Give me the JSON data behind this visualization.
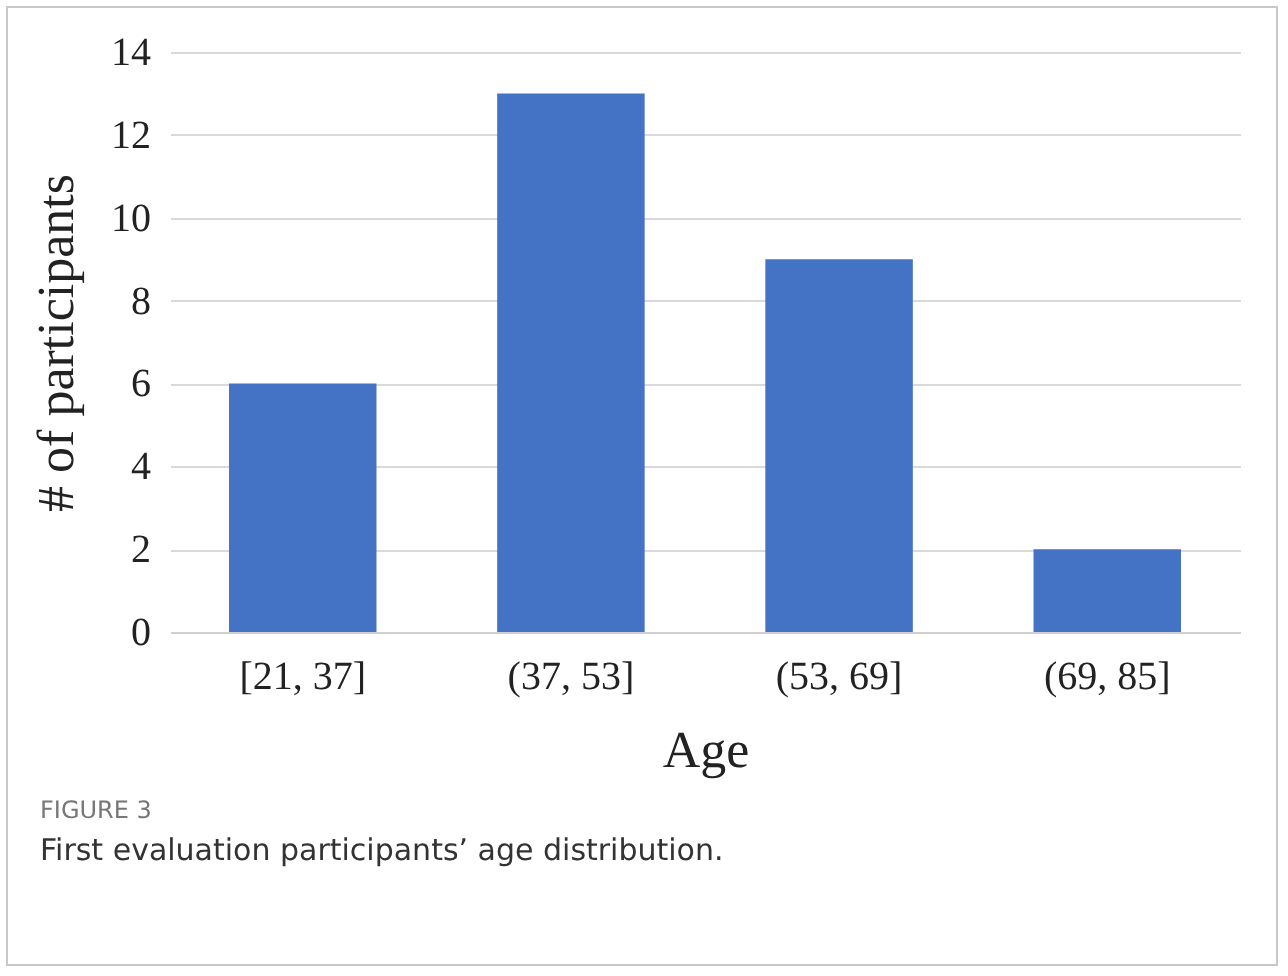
{
  "chart_data": {
    "type": "bar",
    "categories": [
      "[21, 37]",
      "(37, 53]",
      "(53, 69]",
      "(69, 85]"
    ],
    "values": [
      6,
      13,
      9,
      2
    ],
    "color": "#4472c4",
    "xlabel": "Age",
    "ylabel": "# of participants",
    "ylim": [
      0,
      14
    ],
    "yticks": [
      0,
      2,
      4,
      6,
      8,
      10,
      12,
      14
    ],
    "grid": "y",
    "annotations": [
      "FIGURE 3",
      "First evaluation participants’ age distribution."
    ]
  }
}
